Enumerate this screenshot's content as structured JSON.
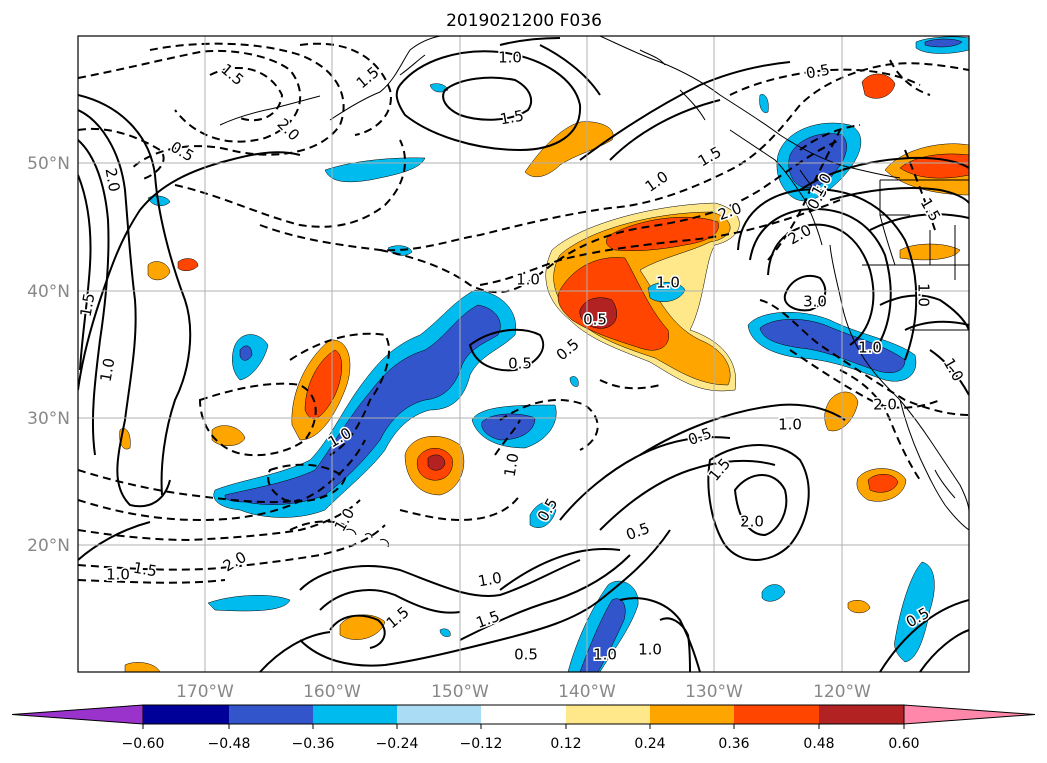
{
  "title": "2019021200 F036",
  "lon_labels": [
    "170°W",
    "160°W",
    "150°W",
    "140°W",
    "130°W",
    "120°W"
  ],
  "lat_labels": [
    "50°N",
    "40°N",
    "30°N",
    "20°N"
  ],
  "colorbar": {
    "ticks": [
      "−0.60",
      "−0.48",
      "−0.36",
      "−0.24",
      "−0.12",
      "0.12",
      "0.24",
      "0.36",
      "0.48",
      "0.60"
    ],
    "colors": [
      "#9933cc",
      "#000099",
      "#3355cc",
      "#00bbee",
      "#aaddf5",
      "#ffffff",
      "#ffe88a",
      "#ffa500",
      "#ff4500",
      "#b22222",
      "#ff88aa"
    ]
  },
  "contour_labels": [
    "1.0",
    "1.5",
    "1.5",
    "2.0",
    "0.5",
    "2.0",
    "1.5",
    "1.0",
    "1.5",
    "1.0",
    "0.5",
    "1.5",
    "1.0",
    "2.0",
    "0.5",
    "2.0",
    "3.0",
    "1.0",
    "2.0",
    "1.0",
    "1.5",
    "1.0",
    "1.0",
    "0.5",
    "0.5",
    "1.0",
    "1.0",
    "0.5",
    "1.5",
    "2.0",
    "0.5",
    "1.0",
    "1.0",
    "1.5",
    "1.0",
    "1.5",
    "2.0",
    "1.0",
    "1.5",
    "0.5",
    "1.0",
    "0.5",
    "1.0",
    "0.5",
    "1.0",
    "0.5"
  ]
}
